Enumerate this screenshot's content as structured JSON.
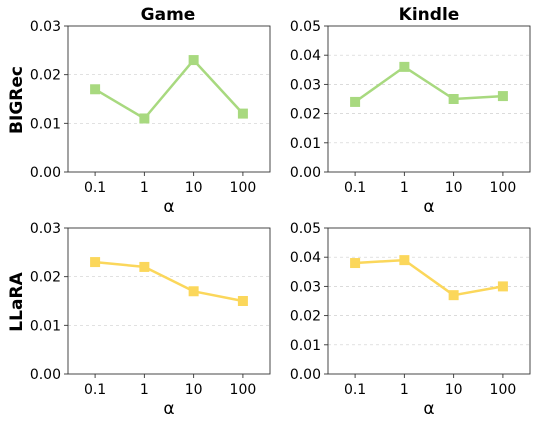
{
  "column_titles": [
    "Game",
    "Kindle"
  ],
  "row_labels": [
    "BIGRec",
    "LLaRA"
  ],
  "colors": {
    "BIGRec": "#a8d97f",
    "LLaRA": "#fbd75b"
  },
  "chart_data": [
    {
      "type": "line",
      "row": "BIGRec",
      "column": "Game",
      "categories": [
        "0.1",
        "1",
        "10",
        "100"
      ],
      "series": [
        {
          "values": [
            0.017,
            0.011,
            0.023,
            0.012
          ]
        }
      ],
      "xlabel": "α",
      "ylabel": "",
      "ylim": [
        0,
        0.03
      ],
      "yticks": [
        "0.00",
        "0.01",
        "0.02",
        "0.03"
      ],
      "grid": "y",
      "marker": "square"
    },
    {
      "type": "line",
      "row": "BIGRec",
      "column": "Kindle",
      "categories": [
        "0.1",
        "1",
        "10",
        "100"
      ],
      "series": [
        {
          "values": [
            0.024,
            0.036,
            0.025,
            0.026
          ]
        }
      ],
      "xlabel": "α",
      "ylabel": "",
      "ylim": [
        0,
        0.05
      ],
      "yticks": [
        "0.00",
        "0.01",
        "0.02",
        "0.03",
        "0.04",
        "0.05"
      ],
      "grid": "y",
      "marker": "square"
    },
    {
      "type": "line",
      "row": "LLaRA",
      "column": "Game",
      "categories": [
        "0.1",
        "1",
        "10",
        "100"
      ],
      "series": [
        {
          "values": [
            0.023,
            0.022,
            0.017,
            0.015
          ]
        }
      ],
      "xlabel": "α",
      "ylabel": "",
      "ylim": [
        0,
        0.03
      ],
      "yticks": [
        "0.00",
        "0.01",
        "0.02",
        "0.03"
      ],
      "grid": "y",
      "marker": "square"
    },
    {
      "type": "line",
      "row": "LLaRA",
      "column": "Kindle",
      "categories": [
        "0.1",
        "1",
        "10",
        "100"
      ],
      "series": [
        {
          "values": [
            0.038,
            0.039,
            0.027,
            0.03
          ]
        }
      ],
      "xlabel": "α",
      "ylabel": "",
      "ylim": [
        0,
        0.05
      ],
      "yticks": [
        "0.00",
        "0.01",
        "0.02",
        "0.03",
        "0.04",
        "0.05"
      ],
      "grid": "y",
      "marker": "square"
    }
  ]
}
